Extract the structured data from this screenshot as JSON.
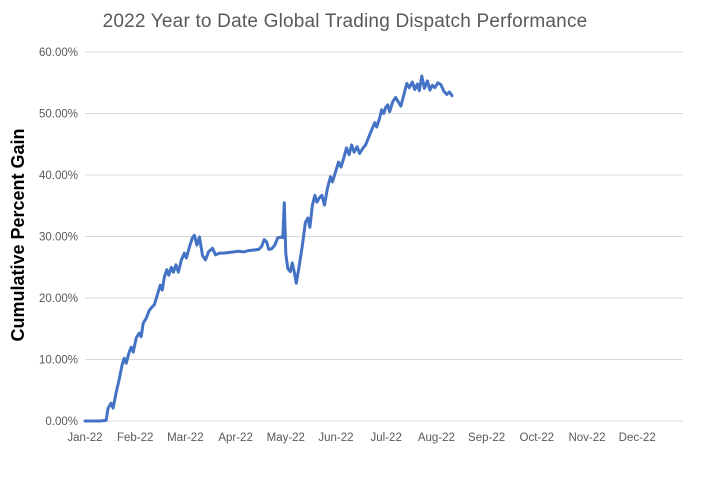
{
  "window": {
    "background_color": "#ffffff"
  },
  "chart": {
    "title": "2022 Year to Date Global Trading Dispatch Performance",
    "y_axis_title": "Cumulative Percent Gain",
    "colors": {
      "line": "#4472C4",
      "gridline": "#D9D9D9",
      "title_text": "#595959",
      "tick_text": "#595959",
      "y_axis_title_text": "#000000"
    }
  },
  "chart_data": {
    "type": "line",
    "title": "2022 Year to Date Global Trading Dispatch Performance",
    "xlabel": "",
    "ylabel": "Cumulative Percent Gain",
    "x_tick_labels": [
      "Jan-22",
      "Feb-22",
      "Mar-22",
      "Apr-22",
      "May-22",
      "Jun-22",
      "Jul-22",
      "Aug-22",
      "Sep-22",
      "Oct-22",
      "Nov-22",
      "Dec-22"
    ],
    "y_tick_labels": [
      "0.00%",
      "10.00%",
      "20.00%",
      "30.00%",
      "40.00%",
      "50.00%",
      "60.00%"
    ],
    "y_tick_step_pct": 10,
    "ylim": [
      0,
      60
    ],
    "x_months_shown": [
      0,
      11.9
    ],
    "data_ends_at_month": 7.31,
    "grid": "horizontal",
    "legend": "none",
    "series": [
      {
        "name": "Cumulative Percent Gain",
        "color": "#4472C4",
        "x_unit": "months after Jan-22 tick (0 = Jan-22, 1 = Feb-22, ...)",
        "y_unit": "percent",
        "points": [
          [
            0.0,
            0.0
          ],
          [
            0.15,
            0.0
          ],
          [
            0.3,
            0.0
          ],
          [
            0.42,
            0.1
          ],
          [
            0.46,
            2.1
          ],
          [
            0.52,
            2.9
          ],
          [
            0.56,
            2.1
          ],
          [
            0.62,
            4.6
          ],
          [
            0.68,
            6.7
          ],
          [
            0.74,
            9.1
          ],
          [
            0.78,
            10.2
          ],
          [
            0.82,
            9.4
          ],
          [
            0.88,
            11.2
          ],
          [
            0.92,
            12.0
          ],
          [
            0.96,
            11.2
          ],
          [
            1.02,
            13.5
          ],
          [
            1.08,
            14.3
          ],
          [
            1.12,
            13.7
          ],
          [
            1.16,
            15.9
          ],
          [
            1.22,
            16.7
          ],
          [
            1.28,
            18.0
          ],
          [
            1.33,
            18.5
          ],
          [
            1.38,
            18.9
          ],
          [
            1.44,
            20.5
          ],
          [
            1.5,
            22.1
          ],
          [
            1.54,
            21.3
          ],
          [
            1.58,
            23.4
          ],
          [
            1.63,
            24.6
          ],
          [
            1.67,
            23.7
          ],
          [
            1.72,
            25.0
          ],
          [
            1.76,
            24.2
          ],
          [
            1.81,
            25.4
          ],
          [
            1.86,
            24.2
          ],
          [
            1.92,
            26.2
          ],
          [
            1.98,
            27.3
          ],
          [
            2.02,
            26.5
          ],
          [
            2.08,
            28.3
          ],
          [
            2.14,
            29.8
          ],
          [
            2.18,
            30.2
          ],
          [
            2.23,
            28.6
          ],
          [
            2.28,
            29.9
          ],
          [
            2.34,
            26.9
          ],
          [
            2.4,
            26.2
          ],
          [
            2.46,
            27.5
          ],
          [
            2.54,
            28.1
          ],
          [
            2.6,
            27.0
          ],
          [
            2.68,
            27.3
          ],
          [
            2.76,
            27.3
          ],
          [
            2.86,
            27.4
          ],
          [
            2.96,
            27.5
          ],
          [
            3.06,
            27.6
          ],
          [
            3.16,
            27.5
          ],
          [
            3.26,
            27.7
          ],
          [
            3.36,
            27.8
          ],
          [
            3.46,
            27.9
          ],
          [
            3.52,
            28.4
          ],
          [
            3.57,
            29.5
          ],
          [
            3.62,
            29.1
          ],
          [
            3.66,
            27.9
          ],
          [
            3.72,
            28.0
          ],
          [
            3.78,
            28.6
          ],
          [
            3.84,
            29.8
          ],
          [
            3.9,
            29.9
          ],
          [
            3.94,
            29.8
          ],
          [
            3.97,
            35.5
          ],
          [
            4.0,
            27.2
          ],
          [
            4.04,
            24.8
          ],
          [
            4.09,
            24.3
          ],
          [
            4.13,
            25.7
          ],
          [
            4.17,
            24.2
          ],
          [
            4.21,
            22.4
          ],
          [
            4.27,
            25.4
          ],
          [
            4.33,
            28.6
          ],
          [
            4.39,
            32.3
          ],
          [
            4.44,
            33.0
          ],
          [
            4.48,
            31.5
          ],
          [
            4.53,
            35.1
          ],
          [
            4.58,
            36.7
          ],
          [
            4.62,
            35.6
          ],
          [
            4.67,
            36.3
          ],
          [
            4.72,
            36.7
          ],
          [
            4.77,
            35.1
          ],
          [
            4.83,
            37.9
          ],
          [
            4.89,
            39.7
          ],
          [
            4.93,
            38.9
          ],
          [
            4.99,
            40.5
          ],
          [
            5.05,
            42.1
          ],
          [
            5.1,
            41.3
          ],
          [
            5.16,
            42.9
          ],
          [
            5.21,
            44.4
          ],
          [
            5.26,
            43.3
          ],
          [
            5.31,
            44.9
          ],
          [
            5.36,
            43.7
          ],
          [
            5.42,
            44.6
          ],
          [
            5.47,
            43.5
          ],
          [
            5.53,
            44.3
          ],
          [
            5.59,
            44.9
          ],
          [
            5.65,
            46.1
          ],
          [
            5.71,
            47.3
          ],
          [
            5.77,
            48.5
          ],
          [
            5.81,
            47.8
          ],
          [
            5.87,
            49.3
          ],
          [
            5.91,
            50.6
          ],
          [
            5.95,
            50.0
          ],
          [
            5.99,
            51.0
          ],
          [
            6.03,
            51.4
          ],
          [
            6.07,
            50.3
          ],
          [
            6.13,
            51.9
          ],
          [
            6.19,
            52.6
          ],
          [
            6.24,
            51.9
          ],
          [
            6.29,
            51.2
          ],
          [
            6.35,
            53.0
          ],
          [
            6.41,
            54.9
          ],
          [
            6.46,
            54.2
          ],
          [
            6.52,
            55.1
          ],
          [
            6.57,
            53.9
          ],
          [
            6.62,
            54.8
          ],
          [
            6.66,
            53.7
          ],
          [
            6.71,
            56.1
          ],
          [
            6.76,
            54.1
          ],
          [
            6.82,
            55.3
          ],
          [
            6.87,
            53.8
          ],
          [
            6.92,
            54.6
          ],
          [
            6.97,
            54.2
          ],
          [
            7.03,
            55.0
          ],
          [
            7.09,
            54.7
          ],
          [
            7.15,
            53.6
          ],
          [
            7.21,
            53.1
          ],
          [
            7.26,
            53.5
          ],
          [
            7.31,
            52.9
          ]
        ]
      }
    ]
  }
}
